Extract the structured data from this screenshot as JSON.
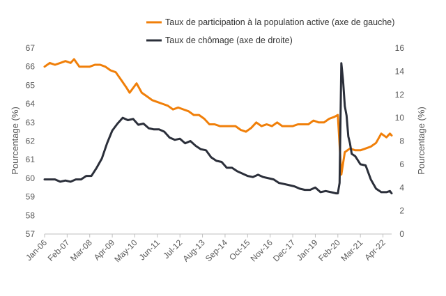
{
  "chart_data": {
    "type": "line",
    "title": "",
    "legend_position": "top-right",
    "grid": false,
    "x_tick_labels": [
      "Jan-06",
      "Feb-07",
      "Mar-08",
      "Apr-09",
      "May-10",
      "Jun-11",
      "Jul-12",
      "Aug-13",
      "Sep-14",
      "Oct-15",
      "Nov-16",
      "Dec-17",
      "Jan-19",
      "Feb-20",
      "Mar-21",
      "Apr-22"
    ],
    "x_range": [
      "2006-01",
      "2022-09"
    ],
    "y_left": {
      "label": "Pourcentage (%)",
      "min": 57,
      "max": 67,
      "ticks": [
        57,
        58,
        59,
        60,
        61,
        62,
        63,
        64,
        65,
        66,
        67
      ]
    },
    "y_right": {
      "label": "Pourcentage (%)",
      "min": 0,
      "max": 16,
      "ticks": [
        0,
        2,
        4,
        6,
        8,
        10,
        12,
        14,
        16
      ]
    },
    "series": [
      {
        "name": "Taux de participation à la population active (axe de gauche)",
        "color": "#F07F09",
        "axis": "left",
        "points": [
          [
            "2006-01",
            66.0
          ],
          [
            "2006-04",
            66.2
          ],
          [
            "2006-07",
            66.1
          ],
          [
            "2006-10",
            66.2
          ],
          [
            "2007-01",
            66.3
          ],
          [
            "2007-04",
            66.2
          ],
          [
            "2007-06",
            66.4
          ],
          [
            "2007-09",
            66.0
          ],
          [
            "2007-12",
            66.0
          ],
          [
            "2008-03",
            66.0
          ],
          [
            "2008-06",
            66.1
          ],
          [
            "2008-09",
            66.1
          ],
          [
            "2008-12",
            66.0
          ],
          [
            "2009-03",
            65.8
          ],
          [
            "2009-06",
            65.7
          ],
          [
            "2009-09",
            65.3
          ],
          [
            "2009-12",
            64.9
          ],
          [
            "2010-02",
            64.6
          ],
          [
            "2010-06",
            65.1
          ],
          [
            "2010-09",
            64.6
          ],
          [
            "2010-12",
            64.4
          ],
          [
            "2011-03",
            64.2
          ],
          [
            "2011-06",
            64.1
          ],
          [
            "2011-09",
            64.0
          ],
          [
            "2011-12",
            63.9
          ],
          [
            "2012-03",
            63.7
          ],
          [
            "2012-06",
            63.8
          ],
          [
            "2012-09",
            63.7
          ],
          [
            "2012-12",
            63.6
          ],
          [
            "2013-03",
            63.4
          ],
          [
            "2013-06",
            63.4
          ],
          [
            "2013-09",
            63.2
          ],
          [
            "2013-12",
            62.9
          ],
          [
            "2014-03",
            62.9
          ],
          [
            "2014-06",
            62.8
          ],
          [
            "2014-09",
            62.8
          ],
          [
            "2014-12",
            62.8
          ],
          [
            "2015-03",
            62.8
          ],
          [
            "2015-06",
            62.6
          ],
          [
            "2015-09",
            62.5
          ],
          [
            "2015-12",
            62.7
          ],
          [
            "2016-03",
            63.0
          ],
          [
            "2016-06",
            62.8
          ],
          [
            "2016-09",
            62.9
          ],
          [
            "2016-12",
            62.8
          ],
          [
            "2017-03",
            63.0
          ],
          [
            "2017-06",
            62.8
          ],
          [
            "2017-09",
            62.8
          ],
          [
            "2017-12",
            62.8
          ],
          [
            "2018-03",
            62.9
          ],
          [
            "2018-06",
            62.9
          ],
          [
            "2018-09",
            62.9
          ],
          [
            "2018-12",
            63.1
          ],
          [
            "2019-03",
            63.0
          ],
          [
            "2019-06",
            63.0
          ],
          [
            "2019-09",
            63.2
          ],
          [
            "2019-12",
            63.3
          ],
          [
            "2020-02",
            63.4
          ],
          [
            "2020-04",
            60.2
          ],
          [
            "2020-06",
            61.4
          ],
          [
            "2020-09",
            61.6
          ],
          [
            "2020-12",
            61.5
          ],
          [
            "2021-03",
            61.5
          ],
          [
            "2021-06",
            61.6
          ],
          [
            "2021-09",
            61.7
          ],
          [
            "2021-12",
            61.9
          ],
          [
            "2022-03",
            62.4
          ],
          [
            "2022-06",
            62.2
          ],
          [
            "2022-08",
            62.4
          ],
          [
            "2022-09",
            62.3
          ]
        ]
      },
      {
        "name": "Taux de chômage (axe de droite)",
        "color": "#2B2F3A",
        "axis": "right",
        "points": [
          [
            "2006-01",
            4.7
          ],
          [
            "2006-04",
            4.7
          ],
          [
            "2006-07",
            4.7
          ],
          [
            "2006-10",
            4.5
          ],
          [
            "2007-01",
            4.6
          ],
          [
            "2007-04",
            4.5
          ],
          [
            "2007-07",
            4.7
          ],
          [
            "2007-10",
            4.7
          ],
          [
            "2008-01",
            5.0
          ],
          [
            "2008-04",
            5.0
          ],
          [
            "2008-07",
            5.7
          ],
          [
            "2008-10",
            6.5
          ],
          [
            "2009-01",
            7.8
          ],
          [
            "2009-04",
            8.9
          ],
          [
            "2009-07",
            9.5
          ],
          [
            "2009-10",
            10.0
          ],
          [
            "2010-01",
            9.8
          ],
          [
            "2010-04",
            9.9
          ],
          [
            "2010-07",
            9.4
          ],
          [
            "2010-10",
            9.5
          ],
          [
            "2011-01",
            9.1
          ],
          [
            "2011-04",
            9.0
          ],
          [
            "2011-07",
            9.0
          ],
          [
            "2011-10",
            8.8
          ],
          [
            "2012-01",
            8.3
          ],
          [
            "2012-04",
            8.1
          ],
          [
            "2012-07",
            8.2
          ],
          [
            "2012-10",
            7.8
          ],
          [
            "2013-01",
            8.0
          ],
          [
            "2013-04",
            7.6
          ],
          [
            "2013-07",
            7.3
          ],
          [
            "2013-10",
            7.2
          ],
          [
            "2014-01",
            6.6
          ],
          [
            "2014-04",
            6.3
          ],
          [
            "2014-07",
            6.2
          ],
          [
            "2014-10",
            5.7
          ],
          [
            "2015-01",
            5.7
          ],
          [
            "2015-04",
            5.4
          ],
          [
            "2015-07",
            5.2
          ],
          [
            "2015-10",
            5.0
          ],
          [
            "2016-01",
            4.9
          ],
          [
            "2016-04",
            5.1
          ],
          [
            "2016-07",
            4.9
          ],
          [
            "2016-10",
            4.8
          ],
          [
            "2017-01",
            4.7
          ],
          [
            "2017-04",
            4.4
          ],
          [
            "2017-07",
            4.3
          ],
          [
            "2017-10",
            4.2
          ],
          [
            "2018-01",
            4.1
          ],
          [
            "2018-04",
            3.9
          ],
          [
            "2018-07",
            3.8
          ],
          [
            "2018-10",
            3.8
          ],
          [
            "2019-01",
            4.0
          ],
          [
            "2019-04",
            3.6
          ],
          [
            "2019-07",
            3.7
          ],
          [
            "2019-10",
            3.6
          ],
          [
            "2020-01",
            3.5
          ],
          [
            "2020-02",
            3.5
          ],
          [
            "2020-03",
            4.4
          ],
          [
            "2020-04",
            14.7
          ],
          [
            "2020-05",
            13.2
          ],
          [
            "2020-06",
            11.0
          ],
          [
            "2020-07",
            10.2
          ],
          [
            "2020-08",
            8.4
          ],
          [
            "2020-09",
            7.8
          ],
          [
            "2020-10",
            6.9
          ],
          [
            "2020-12",
            6.7
          ],
          [
            "2021-03",
            6.0
          ],
          [
            "2021-06",
            5.9
          ],
          [
            "2021-09",
            4.7
          ],
          [
            "2021-12",
            3.9
          ],
          [
            "2022-03",
            3.6
          ],
          [
            "2022-06",
            3.6
          ],
          [
            "2022-08",
            3.7
          ],
          [
            "2022-09",
            3.5
          ]
        ]
      }
    ]
  }
}
